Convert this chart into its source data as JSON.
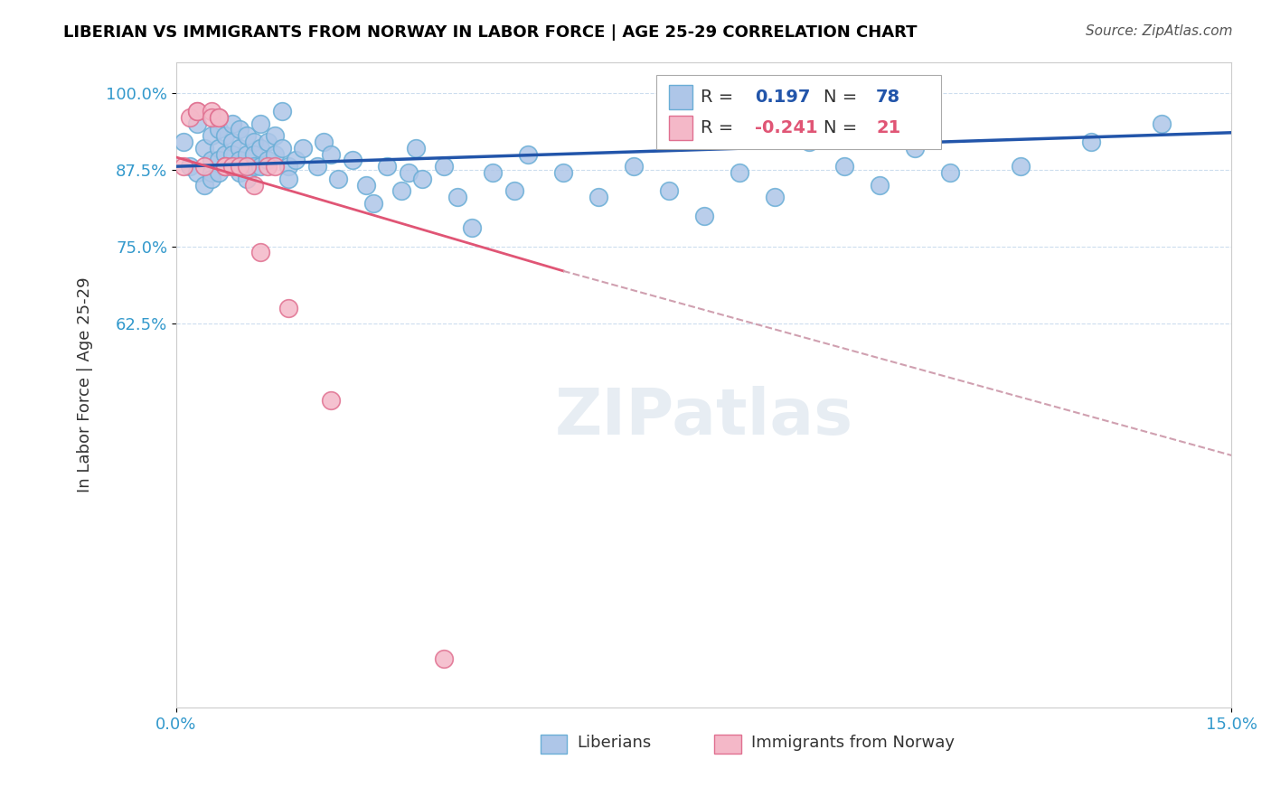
{
  "title": "LIBERIAN VS IMMIGRANTS FROM NORWAY IN LABOR FORCE | AGE 25-29 CORRELATION CHART",
  "source": "Source: ZipAtlas.com",
  "ylabel": "In Labor Force | Age 25-29",
  "xlim": [
    0.0,
    0.15
  ],
  "ylim": [
    0.0,
    1.05
  ],
  "xtick_labels": [
    "0.0%",
    "15.0%"
  ],
  "ytick_labels": [
    "100.0%",
    "87.5%",
    "75.0%",
    "62.5%"
  ],
  "ytick_values": [
    1.0,
    0.875,
    0.75,
    0.625
  ],
  "blue_R": 0.197,
  "blue_N": 78,
  "pink_R": -0.241,
  "pink_N": 21,
  "blue_color": "#aec6e8",
  "blue_edge": "#6aaed6",
  "pink_color": "#f4b8c8",
  "pink_edge": "#e07090",
  "blue_line_color": "#2255aa",
  "pink_line_color": "#e05575",
  "pink_dashed_color": "#d0a0b0",
  "watermark": "ZIPatlas",
  "legend_label_blue": "Liberians",
  "legend_label_pink": "Immigrants from Norway",
  "blue_scatter_x": [
    0.001,
    0.002,
    0.003,
    0.003,
    0.004,
    0.004,
    0.005,
    0.005,
    0.005,
    0.005,
    0.006,
    0.006,
    0.006,
    0.006,
    0.007,
    0.007,
    0.007,
    0.008,
    0.008,
    0.008,
    0.008,
    0.009,
    0.009,
    0.009,
    0.009,
    0.01,
    0.01,
    0.01,
    0.01,
    0.011,
    0.011,
    0.011,
    0.012,
    0.012,
    0.012,
    0.013,
    0.013,
    0.014,
    0.014,
    0.015,
    0.015,
    0.016,
    0.016,
    0.017,
    0.018,
    0.02,
    0.021,
    0.022,
    0.023,
    0.025,
    0.027,
    0.028,
    0.03,
    0.032,
    0.033,
    0.034,
    0.035,
    0.038,
    0.04,
    0.042,
    0.045,
    0.048,
    0.05,
    0.055,
    0.06,
    0.065,
    0.07,
    0.075,
    0.08,
    0.085,
    0.09,
    0.095,
    0.1,
    0.105,
    0.11,
    0.12,
    0.13,
    0.14
  ],
  "blue_scatter_y": [
    0.92,
    0.88,
    0.95,
    0.87,
    0.91,
    0.85,
    0.93,
    0.89,
    0.87,
    0.86,
    0.94,
    0.91,
    0.89,
    0.87,
    0.93,
    0.9,
    0.88,
    0.95,
    0.92,
    0.9,
    0.88,
    0.94,
    0.91,
    0.89,
    0.87,
    0.93,
    0.9,
    0.88,
    0.86,
    0.92,
    0.9,
    0.88,
    0.95,
    0.91,
    0.88,
    0.92,
    0.89,
    0.93,
    0.9,
    0.97,
    0.91,
    0.88,
    0.86,
    0.89,
    0.91,
    0.88,
    0.92,
    0.9,
    0.86,
    0.89,
    0.85,
    0.82,
    0.88,
    0.84,
    0.87,
    0.91,
    0.86,
    0.88,
    0.83,
    0.78,
    0.87,
    0.84,
    0.9,
    0.87,
    0.83,
    0.88,
    0.84,
    0.8,
    0.87,
    0.83,
    0.92,
    0.88,
    0.85,
    0.91,
    0.87,
    0.88,
    0.92,
    0.95
  ],
  "pink_scatter_x": [
    0.001,
    0.002,
    0.003,
    0.003,
    0.004,
    0.005,
    0.005,
    0.006,
    0.006,
    0.007,
    0.007,
    0.008,
    0.009,
    0.01,
    0.011,
    0.012,
    0.013,
    0.014,
    0.016,
    0.022,
    0.038
  ],
  "pink_scatter_y": [
    0.88,
    0.96,
    0.97,
    0.97,
    0.88,
    0.97,
    0.96,
    0.96,
    0.96,
    0.88,
    0.88,
    0.88,
    0.88,
    0.88,
    0.85,
    0.74,
    0.88,
    0.88,
    0.65,
    0.5,
    0.08
  ]
}
